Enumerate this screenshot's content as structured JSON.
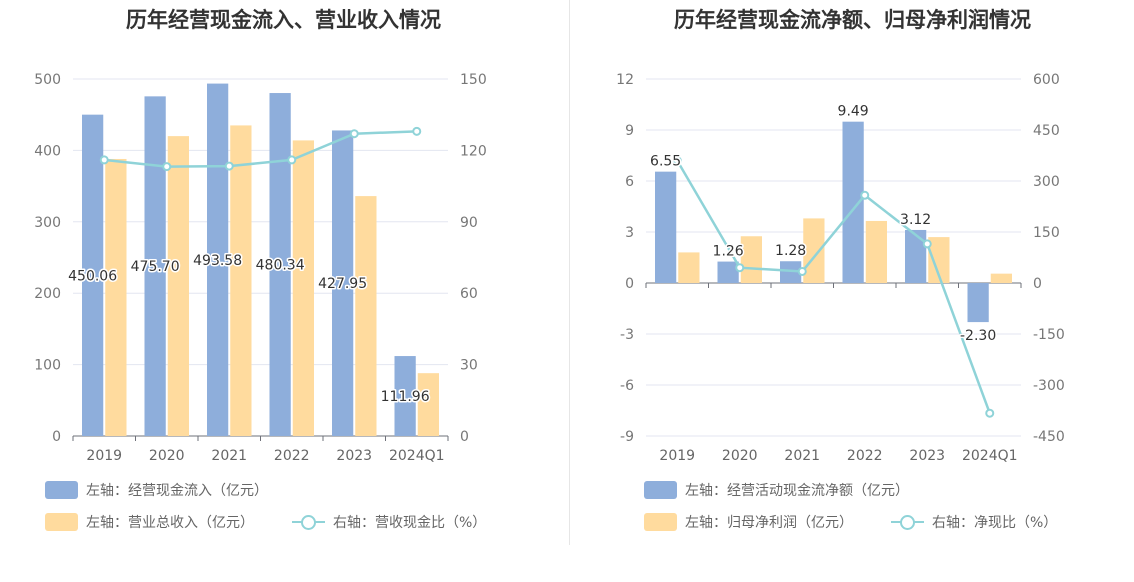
{
  "colors": {
    "bar_blue": "#8eaedb",
    "bar_orange": "#ffdb9e",
    "line_teal": "#8fd3d8",
    "grid": "#e3e6f0"
  },
  "chart_data": [
    {
      "type": "bar",
      "title": "历年经营现金流入、营业收入情况",
      "categories": [
        "2019",
        "2020",
        "2021",
        "2022",
        "2023",
        "2024Q1"
      ],
      "left_axis": {
        "ylim": [
          0,
          500
        ],
        "ticks": [
          "0",
          "100",
          "200",
          "300",
          "400",
          "500"
        ]
      },
      "right_axis": {
        "ylim": [
          0,
          150
        ],
        "ticks": [
          "0",
          "30",
          "60",
          "90",
          "120",
          "150"
        ]
      },
      "series": [
        {
          "name": "左轴：经营现金流入（亿元）",
          "type": "bar",
          "axis": "left",
          "color": "#8eaedb",
          "values": [
            450.06,
            475.7,
            493.58,
            480.34,
            427.95,
            111.96
          ],
          "labels": [
            "450.06",
            "475.70",
            "493.58",
            "480.34",
            "427.95",
            "111.96"
          ]
        },
        {
          "name": "左轴：营业总收入（亿元）",
          "type": "bar",
          "axis": "left",
          "color": "#ffdb9e",
          "values": [
            388,
            420,
            435,
            414,
            336,
            88
          ]
        },
        {
          "name": "右轴：营收现金比（%）",
          "type": "line",
          "axis": "right",
          "color": "#8fd3d8",
          "values": [
            116,
            113.2,
            113.4,
            116,
            127,
            128
          ]
        }
      ],
      "legend": [
        "左轴：经营现金流入（亿元）",
        "左轴：营业总收入（亿元）",
        "右轴：营收现金比（%）"
      ]
    },
    {
      "type": "bar",
      "title": "历年经营现金流净额、归母净利润情况",
      "categories": [
        "2019",
        "2020",
        "2021",
        "2022",
        "2023",
        "2024Q1"
      ],
      "left_axis": {
        "ylim": [
          -9,
          12
        ],
        "ticks": [
          "-9",
          "-6",
          "-3",
          "0",
          "3",
          "6",
          "9",
          "12"
        ]
      },
      "right_axis": {
        "ylim": [
          -450,
          600
        ],
        "ticks": [
          "-450",
          "-300",
          "-150",
          "0",
          "150",
          "300",
          "450",
          "600"
        ]
      },
      "series": [
        {
          "name": "左轴：经营活动现金流净额（亿元）",
          "type": "bar",
          "axis": "left",
          "color": "#8eaedb",
          "values": [
            6.55,
            1.26,
            1.28,
            9.49,
            3.12,
            -2.3
          ],
          "labels": [
            "6.55",
            "1.26",
            "1.28",
            "9.49",
            "3.12",
            "-2.30"
          ]
        },
        {
          "name": "左轴：归母净利润（亿元）",
          "type": "bar",
          "axis": "left",
          "color": "#ffdb9e",
          "values": [
            1.8,
            2.75,
            3.8,
            3.65,
            2.7,
            0.55
          ]
        },
        {
          "name": "右轴：净现比（%）",
          "type": "line",
          "axis": "right",
          "color": "#8fd3d8",
          "values": [
            360,
            45,
            34,
            258,
            115,
            -383
          ]
        }
      ],
      "legend": [
        "左轴：经营活动现金流净额（亿元）",
        "左轴：归母净利润（亿元）",
        "右轴：净现比（%）"
      ]
    }
  ]
}
